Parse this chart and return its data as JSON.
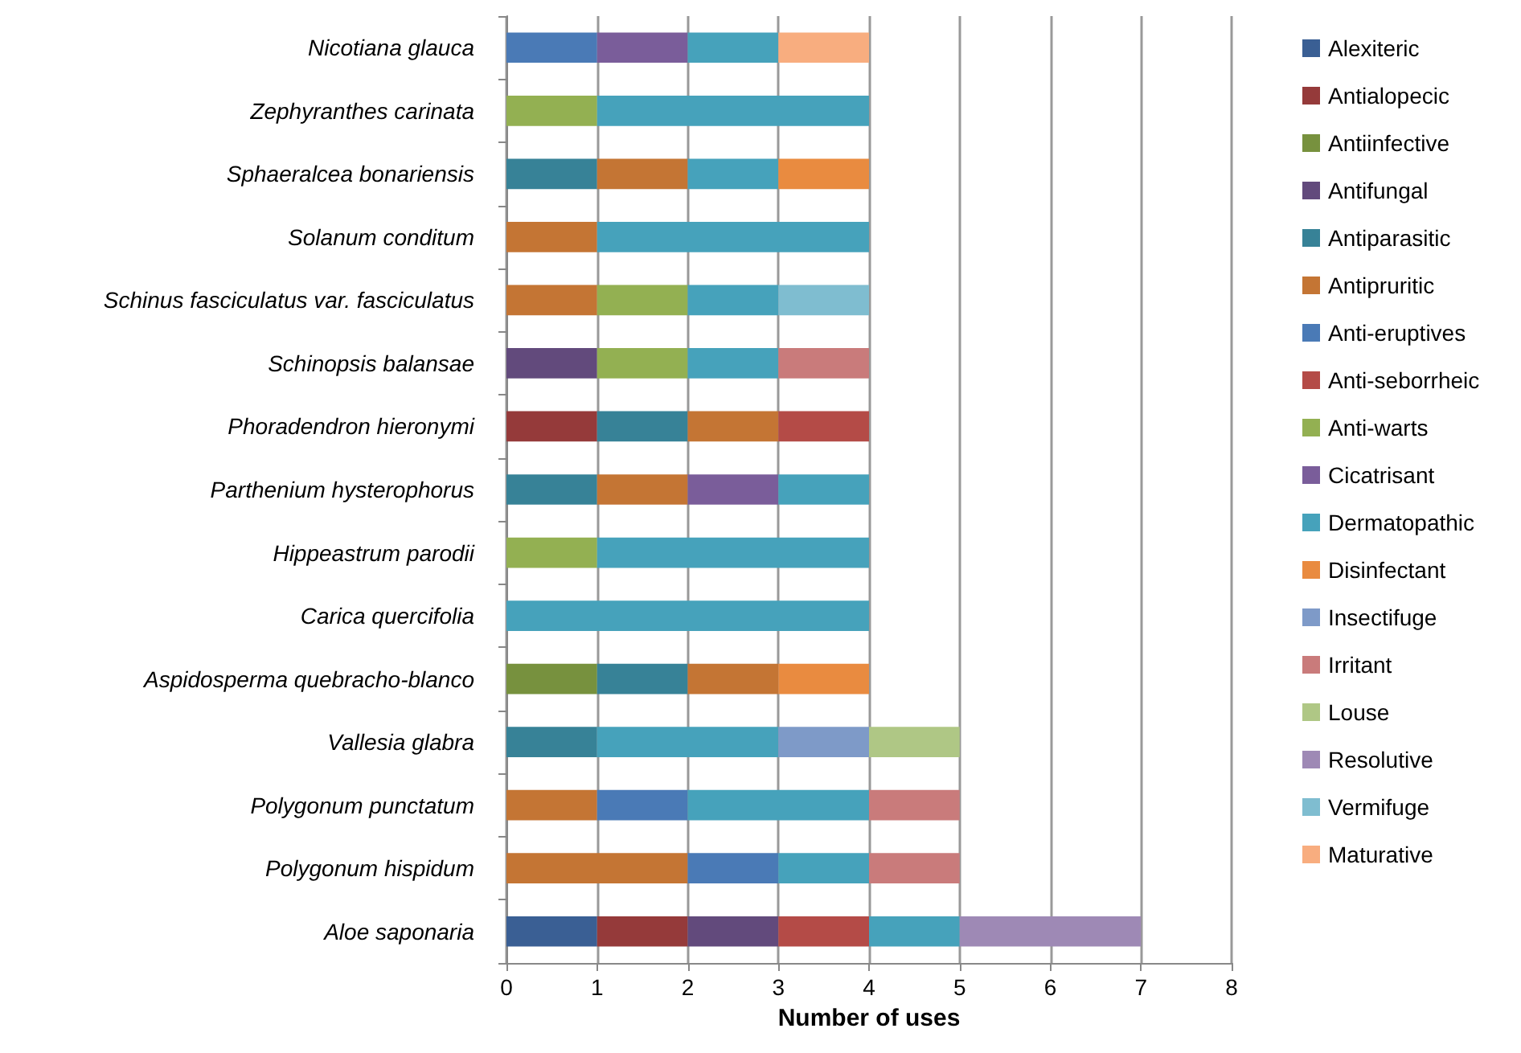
{
  "chart_data": {
    "type": "bar",
    "orientation": "horizontal",
    "stacked": true,
    "xlabel": "Number of uses",
    "categories": [
      "Nicotiana glauca",
      "Zephyranthes carinata",
      "Sphaeralcea bonariensis",
      "Solanum conditum",
      "Schinus fasciculatus var. fasciculatus",
      "Schinopsis balansae",
      "Phoradendron hieronymi",
      "Parthenium hysterophorus",
      "Hippeastrum parodii",
      "Carica quercifolia",
      "Aspidosperma quebracho-blanco",
      "Vallesia glabra",
      "Polygonum punctatum",
      "Polygonum hispidum",
      "Aloe saponaria"
    ],
    "series": [
      {
        "name": "Alexiteric",
        "color": "#3a5f94",
        "values": [
          null,
          null,
          null,
          null,
          null,
          null,
          null,
          null,
          null,
          null,
          null,
          null,
          null,
          null,
          1
        ]
      },
      {
        "name": "Antialopecic",
        "color": "#953a3a",
        "values": [
          null,
          null,
          null,
          null,
          null,
          null,
          1,
          null,
          null,
          null,
          null,
          null,
          null,
          null,
          1
        ]
      },
      {
        "name": "Antiinfective",
        "color": "#77913e",
        "values": [
          null,
          null,
          null,
          null,
          null,
          null,
          null,
          null,
          null,
          null,
          1,
          null,
          null,
          null,
          null
        ]
      },
      {
        "name": "Antifungal",
        "color": "#624a7c",
        "values": [
          null,
          null,
          null,
          null,
          null,
          1,
          null,
          null,
          null,
          null,
          null,
          null,
          null,
          null,
          1
        ]
      },
      {
        "name": "Antiparasitic",
        "color": "#378297",
        "values": [
          null,
          null,
          1,
          null,
          null,
          null,
          1,
          1,
          null,
          null,
          1,
          1,
          null,
          null,
          null
        ]
      },
      {
        "name": "Antipruritic",
        "color": "#c47534",
        "values": [
          null,
          null,
          1,
          1,
          1,
          null,
          1,
          1,
          null,
          null,
          1,
          null,
          1,
          2,
          null
        ]
      },
      {
        "name": "Anti-eruptives",
        "color": "#4a7ab6",
        "values": [
          1,
          null,
          null,
          null,
          null,
          null,
          null,
          null,
          null,
          null,
          null,
          null,
          1,
          1,
          null
        ]
      },
      {
        "name": "Anti-seborrheic",
        "color": "#b44b47",
        "values": [
          null,
          null,
          null,
          null,
          null,
          null,
          1,
          null,
          null,
          null,
          null,
          null,
          null,
          null,
          1
        ]
      },
      {
        "name": "Anti-warts",
        "color": "#93b052",
        "values": [
          null,
          1,
          null,
          null,
          1,
          1,
          null,
          null,
          1,
          null,
          null,
          null,
          null,
          null,
          null
        ]
      },
      {
        "name": "Cicatrisant",
        "color": "#7a5d9a",
        "values": [
          1,
          null,
          null,
          null,
          null,
          null,
          null,
          1,
          null,
          null,
          null,
          null,
          null,
          null,
          null
        ]
      },
      {
        "name": "Dermatopathic",
        "color": "#46a2bb",
        "values": [
          1,
          3,
          1,
          3,
          1,
          1,
          null,
          1,
          3,
          4,
          null,
          2,
          2,
          1,
          1
        ]
      },
      {
        "name": "Disinfectant",
        "color": "#e98b40",
        "values": [
          null,
          null,
          1,
          null,
          null,
          null,
          null,
          null,
          null,
          null,
          1,
          null,
          null,
          null,
          null
        ]
      },
      {
        "name": "Insectifuge",
        "color": "#7e9ac8",
        "values": [
          null,
          null,
          null,
          null,
          null,
          null,
          null,
          null,
          null,
          null,
          null,
          1,
          null,
          null,
          null
        ]
      },
      {
        "name": "Irritant",
        "color": "#c97b7b",
        "values": [
          null,
          null,
          null,
          null,
          null,
          1,
          null,
          null,
          null,
          null,
          null,
          null,
          1,
          1,
          null
        ]
      },
      {
        "name": "Louse",
        "color": "#afc785",
        "values": [
          null,
          null,
          null,
          null,
          null,
          null,
          null,
          null,
          null,
          null,
          null,
          1,
          null,
          null,
          null
        ]
      },
      {
        "name": "Resolutive",
        "color": "#9e89b5",
        "values": [
          null,
          null,
          null,
          null,
          null,
          null,
          null,
          null,
          null,
          null,
          null,
          null,
          null,
          null,
          2
        ]
      },
      {
        "name": "Vermifuge",
        "color": "#7fbdd0",
        "values": [
          null,
          null,
          null,
          null,
          1,
          null,
          null,
          null,
          null,
          null,
          null,
          null,
          null,
          null,
          null
        ]
      },
      {
        "name": "Maturative",
        "color": "#f8ad7f",
        "values": [
          1,
          null,
          null,
          null,
          null,
          null,
          null,
          null,
          null,
          null,
          null,
          null,
          null,
          null,
          null
        ]
      }
    ],
    "xlim": [
      0,
      8
    ],
    "xticks": [
      0,
      1,
      2,
      3,
      4,
      5,
      6,
      7,
      8
    ],
    "grid": "x",
    "legend": "right"
  }
}
